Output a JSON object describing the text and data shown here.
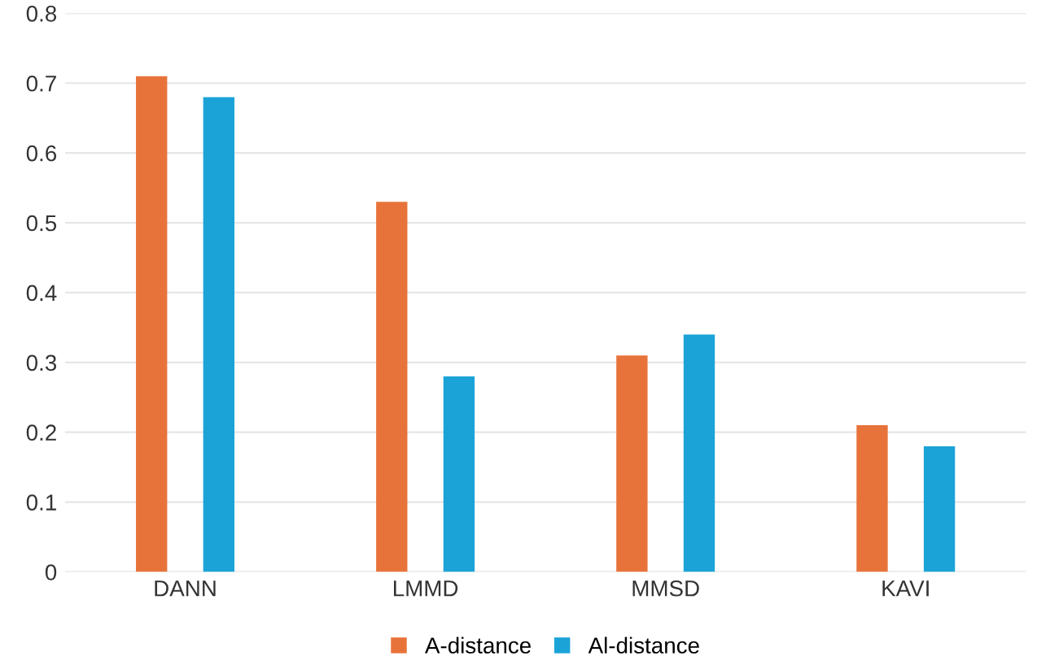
{
  "chart_data": {
    "type": "bar",
    "categories": [
      "DANN",
      "LMMD",
      "MMSD",
      "KAVI"
    ],
    "series": [
      {
        "name": "A-distance",
        "color": "#e8733a",
        "values": [
          0.71,
          0.53,
          0.31,
          0.21
        ]
      },
      {
        "name": "Al-distance",
        "color": "#1ba3d8",
        "values": [
          0.68,
          0.28,
          0.34,
          0.18
        ]
      }
    ],
    "ylim": [
      0,
      0.8
    ],
    "yticks": [
      0,
      0.1,
      0.2,
      0.3,
      0.4,
      0.5,
      0.6,
      0.7,
      0.8
    ],
    "grid": "y",
    "legend": "bottom"
  }
}
